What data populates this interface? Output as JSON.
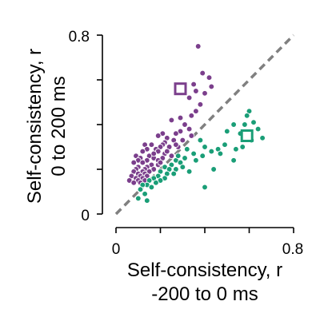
{
  "chart_data": {
    "type": "scatter",
    "title": "",
    "xlabel": [
      "Self-consistency, r",
      "-200 to 0 ms"
    ],
    "ylabel": [
      "Self-consistency, r",
      "0 to 200 ms"
    ],
    "xlim": [
      0,
      0.8
    ],
    "ylim": [
      0,
      0.8
    ],
    "x_ticks": [
      0,
      0.2,
      0.4,
      0.6,
      0.8
    ],
    "y_ticks": [
      0,
      0.2,
      0.4,
      0.6,
      0.8
    ],
    "x_tick_labels": [
      "0",
      "",
      "",
      "",
      "0.8"
    ],
    "y_tick_labels": [
      "0",
      "",
      "",
      "",
      "0.8"
    ],
    "grid": false,
    "legend": "none",
    "colors": {
      "purple": "#7b3f8c",
      "green": "#1a9e77",
      "identity": "#808080"
    },
    "identity_line": {
      "x": [
        0,
        0.8
      ],
      "y": [
        0,
        0.8
      ]
    },
    "series": [
      {
        "color": "#7b3f8c",
        "points": [
          [
            0.37,
            0.75
          ],
          [
            0.39,
            0.63
          ],
          [
            0.42,
            0.61
          ],
          [
            0.35,
            0.58
          ],
          [
            0.43,
            0.57
          ],
          [
            0.36,
            0.55
          ],
          [
            0.4,
            0.54
          ],
          [
            0.33,
            0.52
          ],
          [
            0.38,
            0.49
          ],
          [
            0.36,
            0.46
          ],
          [
            0.34,
            0.44
          ],
          [
            0.29,
            0.43
          ],
          [
            0.25,
            0.42
          ],
          [
            0.31,
            0.4
          ],
          [
            0.33,
            0.38
          ],
          [
            0.29,
            0.37
          ],
          [
            0.27,
            0.36
          ],
          [
            0.21,
            0.36
          ],
          [
            0.34,
            0.35
          ],
          [
            0.19,
            0.35
          ],
          [
            0.23,
            0.34
          ],
          [
            0.3,
            0.33
          ],
          [
            0.26,
            0.33
          ],
          [
            0.22,
            0.32
          ],
          [
            0.21,
            0.31
          ],
          [
            0.13,
            0.31
          ],
          [
            0.16,
            0.31
          ],
          [
            0.2,
            0.3
          ],
          [
            0.24,
            0.3
          ],
          [
            0.28,
            0.3
          ],
          [
            0.14,
            0.29
          ],
          [
            0.18,
            0.29
          ],
          [
            0.12,
            0.28
          ],
          [
            0.19,
            0.28
          ],
          [
            0.22,
            0.27
          ],
          [
            0.09,
            0.26
          ],
          [
            0.15,
            0.26
          ],
          [
            0.25,
            0.26
          ],
          [
            0.11,
            0.25
          ],
          [
            0.17,
            0.25
          ],
          [
            0.21,
            0.25
          ],
          [
            0.1,
            0.24
          ],
          [
            0.14,
            0.24
          ],
          [
            0.19,
            0.24
          ],
          [
            0.08,
            0.23
          ],
          [
            0.12,
            0.23
          ],
          [
            0.16,
            0.22
          ],
          [
            0.19,
            0.22
          ],
          [
            0.1,
            0.21
          ],
          [
            0.14,
            0.21
          ],
          [
            0.09,
            0.2
          ],
          [
            0.13,
            0.2
          ],
          [
            0.17,
            0.2
          ],
          [
            0.08,
            0.19
          ],
          [
            0.12,
            0.19
          ],
          [
            0.15,
            0.19
          ],
          [
            0.1,
            0.18
          ],
          [
            0.13,
            0.18
          ],
          [
            0.07,
            0.17
          ],
          [
            0.11,
            0.17
          ],
          [
            0.14,
            0.17
          ],
          [
            0.09,
            0.16
          ],
          [
            0.12,
            0.16
          ],
          [
            0.06,
            0.15
          ],
          [
            0.1,
            0.15
          ],
          [
            0.13,
            0.15
          ],
          [
            0.08,
            0.14
          ],
          [
            0.11,
            0.14
          ],
          [
            0.2,
            0.23
          ],
          [
            0.23,
            0.28
          ],
          [
            0.27,
            0.31
          ],
          [
            0.17,
            0.27
          ]
        ],
        "highlight": [
          0.29,
          0.56
        ]
      },
      {
        "color": "#1a9e77",
        "points": [
          [
            0.6,
            0.46
          ],
          [
            0.59,
            0.44
          ],
          [
            0.62,
            0.41
          ],
          [
            0.58,
            0.4
          ],
          [
            0.53,
            0.4
          ],
          [
            0.64,
            0.38
          ],
          [
            0.5,
            0.37
          ],
          [
            0.56,
            0.36
          ],
          [
            0.66,
            0.34
          ],
          [
            0.61,
            0.33
          ],
          [
            0.49,
            0.31
          ],
          [
            0.57,
            0.3
          ],
          [
            0.54,
            0.29
          ],
          [
            0.46,
            0.29
          ],
          [
            0.4,
            0.3
          ],
          [
            0.43,
            0.28
          ],
          [
            0.47,
            0.27
          ],
          [
            0.35,
            0.27
          ],
          [
            0.32,
            0.29
          ],
          [
            0.39,
            0.26
          ],
          [
            0.36,
            0.24
          ],
          [
            0.31,
            0.25
          ],
          [
            0.27,
            0.24
          ],
          [
            0.29,
            0.23
          ],
          [
            0.25,
            0.22
          ],
          [
            0.3,
            0.21
          ],
          [
            0.22,
            0.21
          ],
          [
            0.24,
            0.2
          ],
          [
            0.27,
            0.2
          ],
          [
            0.2,
            0.19
          ],
          [
            0.23,
            0.18
          ],
          [
            0.26,
            0.18
          ],
          [
            0.19,
            0.17
          ],
          [
            0.22,
            0.16
          ],
          [
            0.17,
            0.16
          ],
          [
            0.2,
            0.15
          ],
          [
            0.15,
            0.15
          ],
          [
            0.18,
            0.14
          ],
          [
            0.14,
            0.13
          ],
          [
            0.16,
            0.12
          ],
          [
            0.12,
            0.13
          ],
          [
            0.11,
            0.11
          ],
          [
            0.13,
            0.09
          ],
          [
            0.1,
            0.07
          ],
          [
            0.14,
            0.06
          ],
          [
            0.53,
            0.24
          ],
          [
            0.4,
            0.12
          ],
          [
            0.44,
            0.2
          ],
          [
            0.33,
            0.19
          ],
          [
            0.28,
            0.26
          ],
          [
            0.38,
            0.33
          ]
        ],
        "highlight": [
          0.59,
          0.35
        ]
      }
    ]
  }
}
